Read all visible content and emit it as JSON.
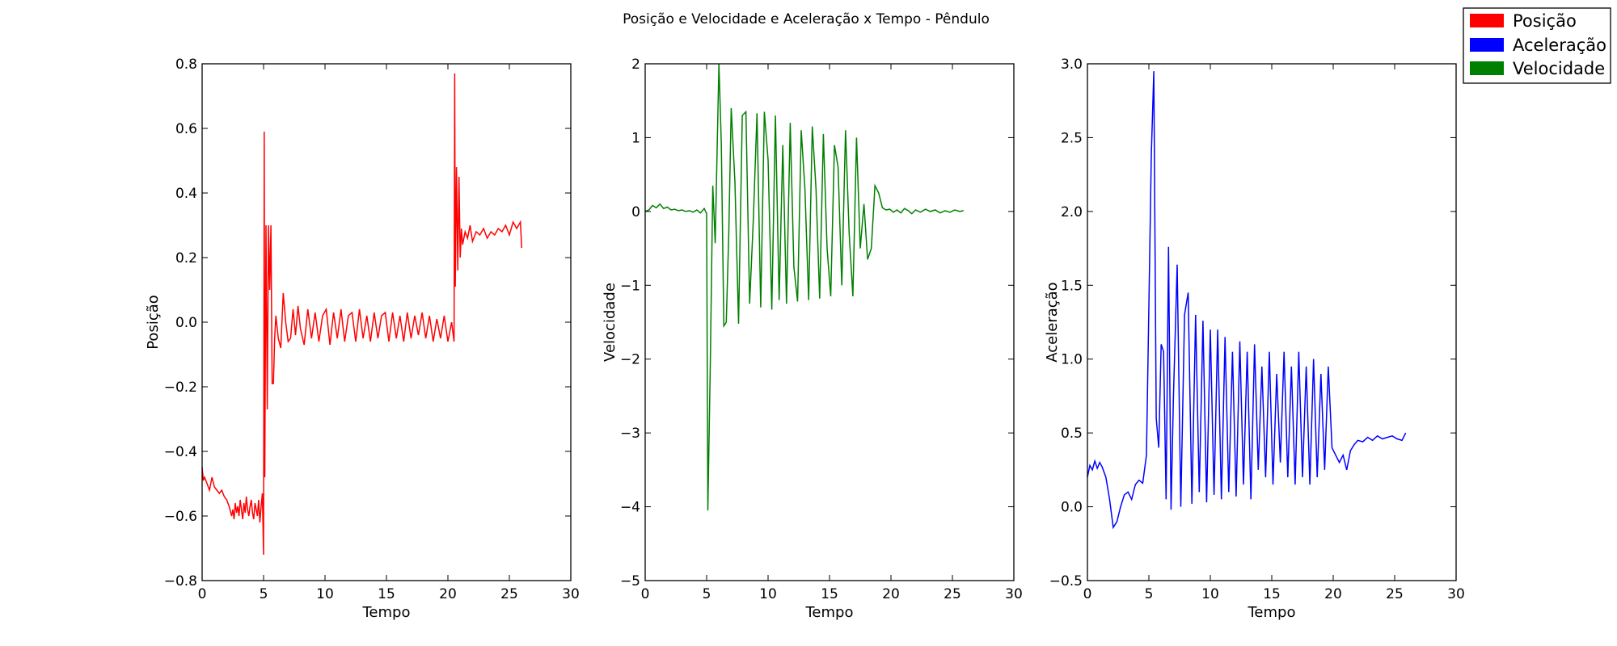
{
  "figure": {
    "title": "Posição e Velocidade e Aceleração x Tempo - Pêndulo"
  },
  "legend": {
    "placement": "top-right",
    "entries": [
      {
        "label": "Posição",
        "color": "#ff0000"
      },
      {
        "label": "Aceleração",
        "color": "#0000ff"
      },
      {
        "label": "Velocidade",
        "color": "#008000"
      }
    ]
  },
  "chart_data": [
    {
      "type": "line",
      "xlabel": "Tempo",
      "ylabel": "Posição",
      "xlim": [
        0,
        30
      ],
      "ylim": [
        -0.8,
        0.8
      ],
      "xticks": [
        0,
        5,
        10,
        15,
        20,
        25,
        30
      ],
      "yticks": [
        -0.8,
        -0.6,
        -0.4,
        -0.2,
        0.0,
        0.2,
        0.4,
        0.6,
        0.8
      ],
      "ytick_labels": [
        "−0.8",
        "−0.6",
        "−0.4",
        "−0.2",
        "0.0",
        "0.2",
        "0.4",
        "0.6",
        "0.8"
      ],
      "series": [
        {
          "color": "#ff0000",
          "x": [
            0,
            0.1,
            0.2,
            0.4,
            0.6,
            0.8,
            1.0,
            1.2,
            1.4,
            1.6,
            1.8,
            2.0,
            2.2,
            2.4,
            2.5,
            2.6,
            2.7,
            2.8,
            2.9,
            3.0,
            3.1,
            3.2,
            3.3,
            3.4,
            3.5,
            3.6,
            3.7,
            3.8,
            3.9,
            4.0,
            4.1,
            4.2,
            4.3,
            4.4,
            4.5,
            4.6,
            4.7,
            4.8,
            4.9,
            5.0,
            5.05,
            5.1,
            5.2,
            5.3,
            5.4,
            5.5,
            5.6,
            5.7,
            5.8,
            5.9,
            6.0,
            6.2,
            6.4,
            6.6,
            6.8,
            7.0,
            7.2,
            7.4,
            7.6,
            7.8,
            8.0,
            8.3,
            8.6,
            8.9,
            9.2,
            9.5,
            9.8,
            10.1,
            10.4,
            10.7,
            11.0,
            11.3,
            11.6,
            11.9,
            12.2,
            12.5,
            12.8,
            13.1,
            13.4,
            13.7,
            14.0,
            14.3,
            14.6,
            14.9,
            15.2,
            15.5,
            15.8,
            16.1,
            16.4,
            16.7,
            17.0,
            17.3,
            17.6,
            17.9,
            18.2,
            18.5,
            18.8,
            19.1,
            19.4,
            19.7,
            20.0,
            20.3,
            20.5,
            20.55,
            20.6,
            20.7,
            20.8,
            20.9,
            21.0,
            21.1,
            21.2,
            21.4,
            21.6,
            21.8,
            22.0,
            22.3,
            22.6,
            22.9,
            23.2,
            23.5,
            23.8,
            24.1,
            24.4,
            24.7,
            25.0,
            25.3,
            25.6,
            25.9,
            26.0
          ],
          "values": [
            -0.45,
            -0.49,
            -0.48,
            -0.5,
            -0.52,
            -0.48,
            -0.51,
            -0.52,
            -0.53,
            -0.52,
            -0.54,
            -0.55,
            -0.57,
            -0.6,
            -0.58,
            -0.61,
            -0.56,
            -0.59,
            -0.57,
            -0.6,
            -0.55,
            -0.58,
            -0.61,
            -0.56,
            -0.59,
            -0.54,
            -0.58,
            -0.6,
            -0.57,
            -0.55,
            -0.59,
            -0.61,
            -0.56,
            -0.58,
            -0.6,
            -0.55,
            -0.62,
            -0.57,
            -0.53,
            -0.72,
            0.59,
            -0.48,
            0.3,
            -0.27,
            0.3,
            0.1,
            0.3,
            -0.19,
            -0.19,
            -0.05,
            0.02,
            -0.05,
            -0.08,
            0.09,
            0.0,
            -0.06,
            -0.05,
            0.04,
            -0.04,
            0.05,
            -0.02,
            -0.07,
            0.04,
            -0.05,
            0.03,
            -0.06,
            0.02,
            0.04,
            -0.07,
            0.03,
            -0.05,
            0.04,
            -0.06,
            0.02,
            0.03,
            -0.06,
            0.04,
            -0.05,
            0.02,
            -0.06,
            0.03,
            -0.05,
            0.02,
            0.03,
            -0.06,
            0.03,
            -0.05,
            0.02,
            -0.06,
            0.03,
            -0.05,
            0.02,
            -0.04,
            0.03,
            -0.05,
            0.02,
            -0.06,
            0.01,
            -0.05,
            0.02,
            -0.06,
            0.0,
            -0.06,
            0.77,
            0.11,
            0.48,
            0.16,
            0.45,
            0.2,
            0.29,
            0.24,
            0.28,
            0.26,
            0.3,
            0.25,
            0.28,
            0.27,
            0.29,
            0.26,
            0.28,
            0.27,
            0.29,
            0.28,
            0.3,
            0.27,
            0.31,
            0.29,
            0.31,
            0.23
          ]
        }
      ]
    },
    {
      "type": "line",
      "xlabel": "Tempo",
      "ylabel": "Velocidade",
      "xlim": [
        0,
        30
      ],
      "ylim": [
        -5,
        2
      ],
      "xticks": [
        0,
        5,
        10,
        15,
        20,
        25,
        30
      ],
      "yticks": [
        -5,
        -4,
        -3,
        -2,
        -1,
        0,
        1,
        2
      ],
      "ytick_labels": [
        "−5",
        "−4",
        "−3",
        "−2",
        "−1",
        "0",
        "1",
        "2"
      ],
      "series": [
        {
          "color": "#008000",
          "x": [
            0,
            0.3,
            0.6,
            0.9,
            1.2,
            1.5,
            1.8,
            2.1,
            2.4,
            2.7,
            3.0,
            3.3,
            3.6,
            3.9,
            4.2,
            4.5,
            4.8,
            5.0,
            5.1,
            5.3,
            5.5,
            5.7,
            6.0,
            6.2,
            6.4,
            6.6,
            6.8,
            7.0,
            7.3,
            7.6,
            7.9,
            8.2,
            8.5,
            8.8,
            9.1,
            9.4,
            9.7,
            10.0,
            10.3,
            10.6,
            10.9,
            11.2,
            11.5,
            11.8,
            12.1,
            12.4,
            12.7,
            13.0,
            13.3,
            13.6,
            13.9,
            14.2,
            14.5,
            14.8,
            15.1,
            15.4,
            15.7,
            16.0,
            16.3,
            16.6,
            16.9,
            17.2,
            17.5,
            17.8,
            18.1,
            18.4,
            18.7,
            19.0,
            19.3,
            19.6,
            19.9,
            20.2,
            20.5,
            20.8,
            21.1,
            21.4,
            21.7,
            22.0,
            22.4,
            22.8,
            23.2,
            23.6,
            24.0,
            24.4,
            24.8,
            25.2,
            25.6,
            25.9
          ],
          "values": [
            0.0,
            0.02,
            0.08,
            0.05,
            0.1,
            0.04,
            0.06,
            0.02,
            0.03,
            0.01,
            0.02,
            0.0,
            0.01,
            -0.01,
            0.02,
            -0.02,
            0.04,
            -0.03,
            -4.05,
            -2.03,
            0.35,
            -0.43,
            2.0,
            0.9,
            -1.55,
            -1.5,
            -0.3,
            1.4,
            0.4,
            -1.52,
            1.3,
            1.35,
            -1.25,
            -0.1,
            1.33,
            -1.3,
            1.35,
            0.7,
            -1.33,
            1.3,
            -1.2,
            0.9,
            -1.25,
            1.2,
            -0.75,
            -1.22,
            1.1,
            0.3,
            -1.2,
            1.15,
            0.3,
            -1.18,
            1.05,
            -0.5,
            -1.15,
            0.9,
            0.6,
            -1.0,
            1.1,
            -0.3,
            -1.15,
            1.0,
            -0.5,
            0.1,
            -0.65,
            -0.5,
            0.35,
            0.25,
            0.05,
            0.02,
            0.03,
            -0.01,
            0.02,
            -0.02,
            0.04,
            0.01,
            -0.03,
            0.02,
            -0.01,
            0.03,
            0.0,
            0.02,
            -0.02,
            0.01,
            -0.01,
            0.02,
            0.0,
            0.01
          ]
        }
      ]
    },
    {
      "type": "line",
      "xlabel": "Tempo",
      "ylabel": "Aceleração",
      "xlim": [
        0,
        30
      ],
      "ylim": [
        -0.5,
        3.0
      ],
      "xticks": [
        0,
        5,
        10,
        15,
        20,
        25,
        30
      ],
      "yticks": [
        -0.5,
        0.0,
        0.5,
        1.0,
        1.5,
        2.0,
        2.5,
        3.0
      ],
      "ytick_labels": [
        "−0.5",
        "0.0",
        "0.5",
        "1.0",
        "1.5",
        "2.0",
        "2.5",
        "3.0"
      ],
      "series": [
        {
          "color": "#0000ff",
          "x": [
            0,
            0.2,
            0.4,
            0.6,
            0.8,
            1.0,
            1.2,
            1.5,
            1.8,
            2.1,
            2.4,
            2.7,
            3.0,
            3.3,
            3.6,
            3.9,
            4.2,
            4.5,
            4.8,
            5.0,
            5.2,
            5.4,
            5.6,
            5.8,
            6.0,
            6.2,
            6.4,
            6.6,
            6.8,
            7.0,
            7.3,
            7.6,
            7.9,
            8.2,
            8.5,
            8.8,
            9.1,
            9.4,
            9.7,
            10.0,
            10.3,
            10.6,
            10.9,
            11.2,
            11.5,
            11.8,
            12.1,
            12.4,
            12.7,
            13.0,
            13.3,
            13.6,
            13.9,
            14.2,
            14.5,
            14.8,
            15.1,
            15.4,
            15.7,
            16.0,
            16.3,
            16.6,
            16.9,
            17.2,
            17.5,
            17.8,
            18.1,
            18.4,
            18.7,
            19.0,
            19.3,
            19.6,
            19.9,
            20.2,
            20.5,
            20.8,
            21.1,
            21.4,
            21.7,
            22.0,
            22.4,
            22.8,
            23.2,
            23.6,
            24.0,
            24.4,
            24.8,
            25.2,
            25.6,
            25.9
          ],
          "values": [
            0.2,
            0.28,
            0.25,
            0.31,
            0.26,
            0.3,
            0.27,
            0.2,
            0.05,
            -0.14,
            -0.1,
            0.0,
            0.08,
            0.1,
            0.05,
            0.15,
            0.18,
            0.16,
            0.35,
            1.36,
            2.38,
            2.95,
            0.6,
            0.4,
            1.1,
            1.05,
            0.05,
            1.76,
            -0.02,
            0.75,
            1.64,
            0.0,
            1.3,
            1.45,
            0.02,
            1.3,
            0.1,
            1.26,
            0.03,
            1.2,
            0.08,
            1.2,
            0.05,
            1.15,
            0.1,
            1.05,
            0.07,
            1.12,
            0.15,
            1.05,
            0.05,
            1.1,
            0.25,
            0.95,
            0.2,
            1.05,
            0.15,
            0.9,
            0.3,
            1.05,
            0.2,
            0.95,
            0.15,
            1.05,
            0.2,
            0.95,
            0.15,
            1.0,
            0.2,
            0.9,
            0.25,
            0.95,
            0.4,
            0.35,
            0.3,
            0.35,
            0.25,
            0.38,
            0.42,
            0.45,
            0.44,
            0.47,
            0.45,
            0.48,
            0.46,
            0.47,
            0.48,
            0.46,
            0.45,
            0.5
          ]
        }
      ]
    }
  ]
}
